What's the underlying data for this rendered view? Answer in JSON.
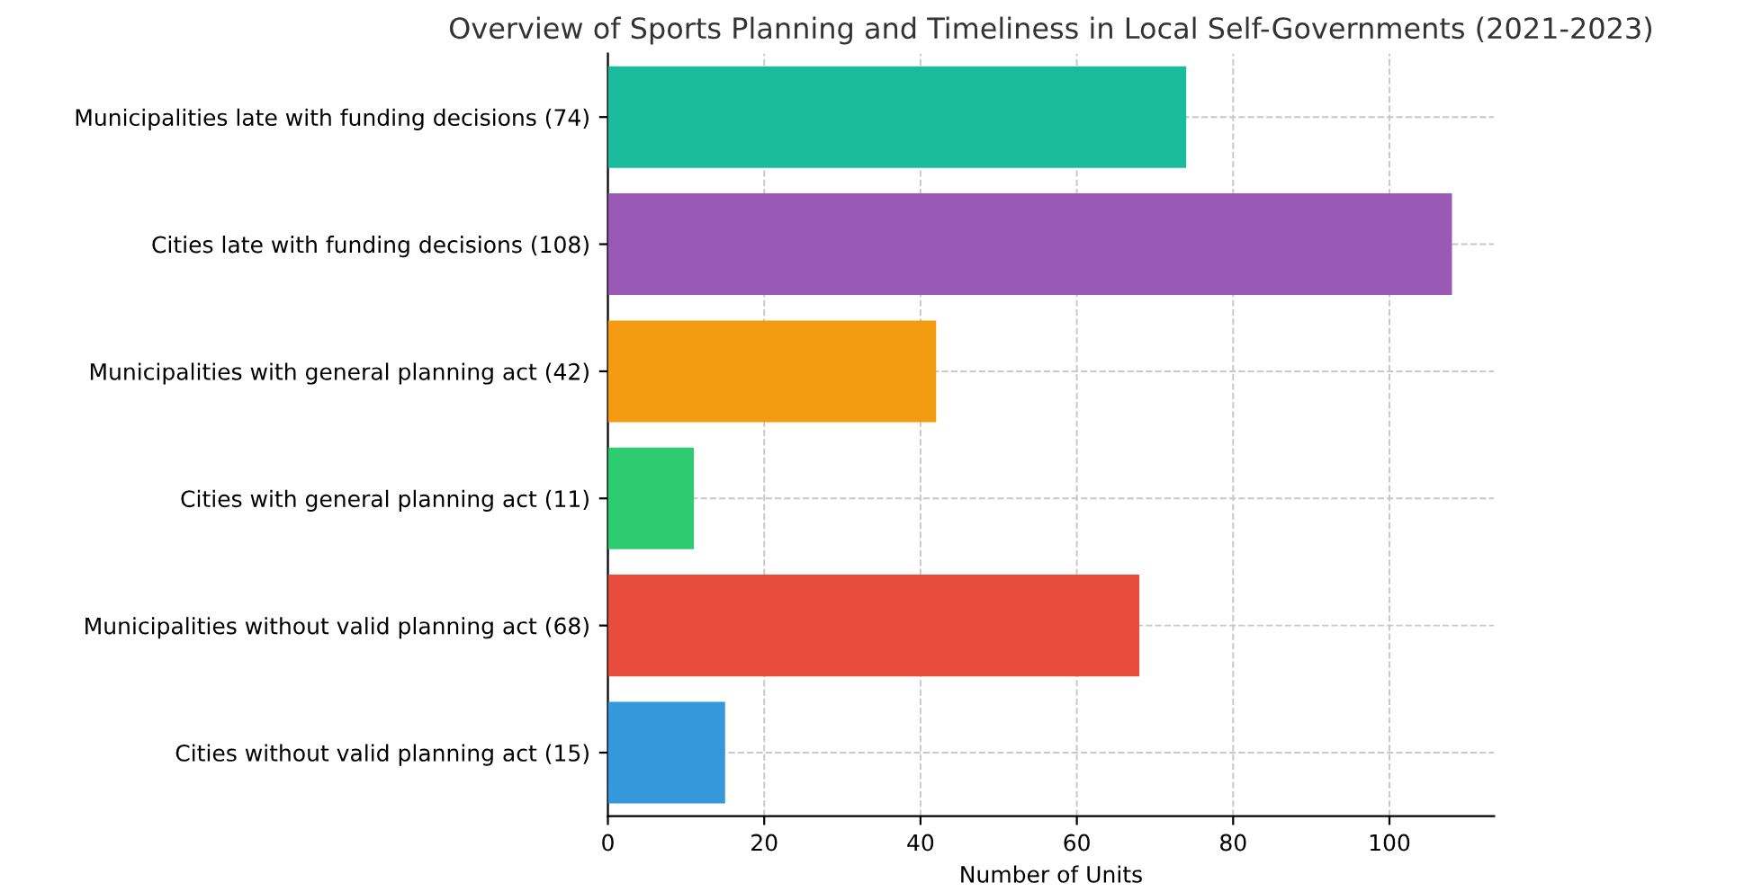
{
  "chart_data": {
    "type": "bar",
    "orientation": "horizontal",
    "title": "Overview of Sports Planning and Timeliness in Local Self-Governments (2021-2023)",
    "xlabel": "Number of Units",
    "categories": [
      "Municipalities late with funding decisions (74)",
      "Cities late with funding decisions (108)",
      "Municipalities with general planning act (42)",
      "Cities with general planning act (11)",
      "Municipalities without valid planning act (68)",
      "Cities without valid planning act (15)"
    ],
    "values": [
      74,
      108,
      42,
      11,
      68,
      15
    ],
    "colors": [
      "#1abc9c",
      "#9b59b6",
      "#f39c12",
      "#2ecc71",
      "#e74c3c",
      "#3498db"
    ],
    "xlim": [
      0,
      113.4
    ],
    "xticks": [
      0,
      20,
      40,
      60,
      80,
      100
    ],
    "grid": true
  }
}
